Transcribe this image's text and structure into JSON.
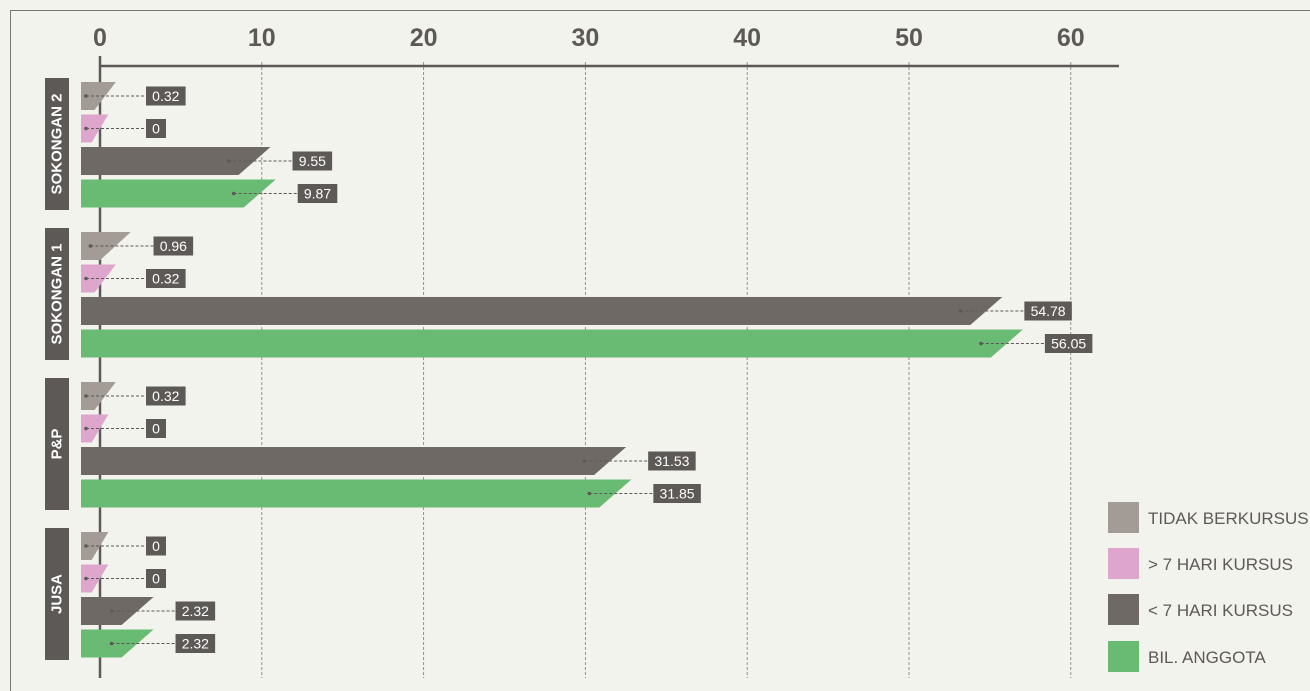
{
  "chart_data": {
    "type": "bar",
    "orientation": "horizontal",
    "xlim": [
      0,
      63
    ],
    "x_ticks": [
      0,
      10,
      20,
      30,
      40,
      50,
      60
    ],
    "grid": "vertical dashed",
    "legend_position": "bottom-right",
    "categories": [
      "SOKONGAN 2",
      "SOKONGAN 1",
      "P&P",
      "JUSA"
    ],
    "series": [
      {
        "name": "TIDAK BERKURSUS",
        "color": "#a39b96",
        "values": [
          0.32,
          0.96,
          0.32,
          0
        ]
      },
      {
        "name": "> 7 HARI KURSUS",
        "color": "#dea6cc",
        "values": [
          0,
          0.32,
          0,
          0
        ]
      },
      {
        "name": "<  7 HARI KURSUS",
        "color": "#6e6965",
        "values": [
          9.55,
          54.78,
          31.53,
          2.32
        ]
      },
      {
        "name": "BIL. ANGGOTA",
        "color": "#69ba72",
        "values": [
          9.87,
          56.05,
          31.85,
          2.32
        ]
      }
    ],
    "value_labels": [
      [
        "0.32",
        "0",
        "9.55",
        "9.87"
      ],
      [
        "0.96",
        "0.32",
        "54.78",
        "56.05"
      ],
      [
        "0.32",
        "0",
        "31.53",
        "31.85"
      ],
      [
        "0",
        "0",
        "2.32",
        "2.32"
      ]
    ]
  },
  "colors": {
    "background": "#f3f3ee",
    "axis": "#5d5957",
    "label_box": "#5d5957",
    "label_text": "#ffffff",
    "grid": "#8a8683"
  }
}
